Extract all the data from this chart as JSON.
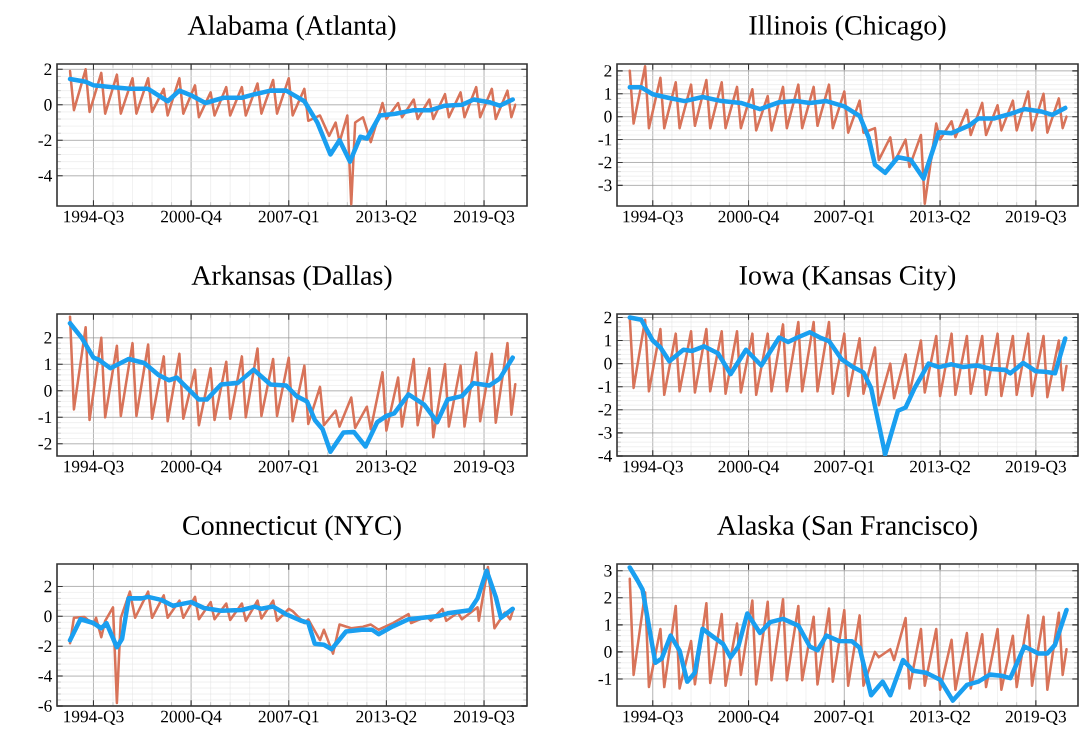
{
  "chart_data": [
    {
      "type": "line",
      "title": "Alabama (Atlanta)",
      "xlim": [
        "1992-03",
        "2022-04"
      ],
      "ylim": [
        -5.7,
        2.3
      ],
      "grid": true,
      "xticks": [
        {
          "value": "1994-07",
          "label": "1994-Q3"
        },
        {
          "value": "2000-10",
          "label": "2000-Q4"
        },
        {
          "value": "2007-01",
          "label": "2007-Q1"
        },
        {
          "value": "2013-04",
          "label": "2013-Q2"
        },
        {
          "value": "2019-07",
          "label": "2019-Q3"
        }
      ],
      "yticks": [
        -4,
        -2,
        0,
        2
      ],
      "x": [
        "1993-01",
        "1993-04",
        "1994-01",
        "1994-04",
        "1995-01",
        "1995-04",
        "1996-01",
        "1996-04",
        "1997-01",
        "1997-04",
        "1998-01",
        "1998-04",
        "1999-01",
        "1999-04",
        "2000-01",
        "2000-04",
        "2001-01",
        "2001-04",
        "2002-01",
        "2002-04",
        "2003-01",
        "2003-04",
        "2004-01",
        "2004-04",
        "2005-01",
        "2005-04",
        "2006-01",
        "2006-04",
        "2007-01",
        "2007-04",
        "2008-01",
        "2008-04",
        "2009-01",
        "2009-08",
        "2010-01",
        "2010-04",
        "2010-10",
        "2011-01",
        "2011-04",
        "2011-10",
        "2012-04",
        "2013-01",
        "2013-04",
        "2014-01",
        "2014-04",
        "2015-01",
        "2015-04",
        "2016-01",
        "2016-04",
        "2017-01",
        "2017-04",
        "2018-01",
        "2018-04",
        "2019-01",
        "2019-04",
        "2020-01",
        "2020-04",
        "2021-01",
        "2021-04",
        "2021-07"
      ],
      "series": [
        {
          "color": "#d87359",
          "values": [
            1.9,
            -0.3,
            2.0,
            -0.4,
            1.8,
            -0.5,
            1.7,
            -0.5,
            1.5,
            -0.5,
            1.5,
            -0.4,
            0.9,
            -0.6,
            1.5,
            -0.5,
            1.1,
            -0.7,
            0.7,
            -0.6,
            1.0,
            -0.6,
            1.0,
            -0.6,
            1.2,
            -0.5,
            1.4,
            -0.5,
            1.5,
            -0.6,
            0.9,
            -0.9,
            -0.6,
            -1.75,
            -1.0,
            -2.1,
            -0.6,
            -5.6,
            -1.0,
            -0.7,
            -2.1,
            0.1,
            -0.8,
            0.1,
            -0.7,
            0.3,
            -0.8,
            0.3,
            -0.8,
            0.6,
            -0.7,
            0.7,
            -0.7,
            1.0,
            -0.7,
            0.9,
            -0.8,
            0.8,
            -0.7,
            0.0
          ]
        },
        {
          "color": "#1a9ff0",
          "x": [
            "1993-01",
            "1994-01",
            "1994-07",
            "1995-08",
            "1996-11",
            "1998-01",
            "1999-04",
            "2000-01",
            "2000-11",
            "2001-09",
            "2002-11",
            "2004-01",
            "2004-11",
            "2005-11",
            "2006-11",
            "2008-01",
            "2008-11",
            "2009-09",
            "2010-04",
            "2010-12",
            "2011-08",
            "2012-01",
            "2012-11",
            "2013-11",
            "2015-01",
            "2016-02",
            "2017-01",
            "2018-02",
            "2018-11",
            "2019-11",
            "2020-07",
            "2021-05"
          ],
          "values": [
            1.45,
            1.3,
            1.1,
            1.0,
            0.9,
            0.9,
            0.2,
            0.8,
            0.5,
            0.1,
            0.4,
            0.4,
            0.6,
            0.8,
            0.8,
            0.2,
            -1.0,
            -2.8,
            -2.0,
            -3.2,
            -1.8,
            -1.9,
            -0.6,
            -0.5,
            -0.3,
            -0.3,
            -0.05,
            0.0,
            0.3,
            0.15,
            -0.05,
            0.3
          ]
        }
      ]
    },
    {
      "type": "line",
      "title": "Illinois (Chicago)",
      "xlim": [
        "1992-03",
        "2022-04"
      ],
      "ylim": [
        -3.9,
        2.3
      ],
      "grid": true,
      "xticks": [
        {
          "value": "1994-07",
          "label": "1994-Q3"
        },
        {
          "value": "2000-10",
          "label": "2000-Q4"
        },
        {
          "value": "2007-01",
          "label": "2007-Q1"
        },
        {
          "value": "2013-04",
          "label": "2013-Q2"
        },
        {
          "value": "2019-07",
          "label": "2019-Q3"
        }
      ],
      "yticks": [
        -3,
        -2,
        -1,
        0,
        1,
        2
      ],
      "x": [
        "1993-01",
        "1993-04",
        "1994-01",
        "1994-04",
        "1995-01",
        "1995-04",
        "1996-01",
        "1996-04",
        "1997-01",
        "1997-04",
        "1998-01",
        "1998-04",
        "1999-01",
        "1999-04",
        "2000-01",
        "2000-04",
        "2001-01",
        "2001-04",
        "2002-01",
        "2002-04",
        "2003-01",
        "2003-04",
        "2004-01",
        "2004-04",
        "2005-01",
        "2005-04",
        "2006-01",
        "2006-04",
        "2007-01",
        "2007-04",
        "2008-01",
        "2008-04",
        "2009-01",
        "2009-04",
        "2010-01",
        "2010-04",
        "2011-01",
        "2011-04",
        "2012-01",
        "2012-04",
        "2013-01",
        "2013-04",
        "2014-01",
        "2014-04",
        "2015-01",
        "2015-04",
        "2016-01",
        "2016-04",
        "2017-01",
        "2017-04",
        "2018-01",
        "2018-04",
        "2019-01",
        "2019-04",
        "2020-01",
        "2020-04",
        "2021-01",
        "2021-04",
        "2021-07"
      ],
      "series": [
        {
          "color": "#d87359",
          "values": [
            2.0,
            -0.3,
            2.2,
            -0.5,
            1.7,
            -0.5,
            1.5,
            -0.5,
            1.4,
            -0.4,
            1.6,
            -0.5,
            1.5,
            -0.5,
            1.3,
            -0.5,
            1.2,
            -0.6,
            0.9,
            -0.6,
            1.3,
            -0.5,
            1.4,
            -0.5,
            1.3,
            -0.4,
            1.4,
            -0.5,
            1.1,
            -0.7,
            0.7,
            -0.7,
            -0.5,
            -1.9,
            -0.9,
            -2.0,
            -1.0,
            -2.2,
            -0.8,
            -3.8,
            -0.3,
            -1.0,
            -0.2,
            -0.9,
            0.3,
            -0.8,
            0.6,
            -0.8,
            0.5,
            -0.6,
            0.7,
            -0.6,
            1.1,
            -0.6,
            1.0,
            -0.7,
            0.8,
            -0.5,
            0.0
          ]
        },
        {
          "color": "#1a9ff0",
          "x": [
            "1993-01",
            "1993-10",
            "1994-07",
            "1995-07",
            "1996-08",
            "1997-10",
            "1999-01",
            "2000-04",
            "2001-07",
            "2002-10",
            "2003-11",
            "2004-10",
            "2005-11",
            "2007-01",
            "2008-01",
            "2008-08",
            "2009-01",
            "2009-09",
            "2010-07",
            "2011-05",
            "2012-03",
            "2013-03",
            "2014-01",
            "2015-03",
            "2015-10",
            "2016-10",
            "2017-11",
            "2018-10",
            "2019-11",
            "2020-08",
            "2021-06"
          ],
          "values": [
            1.28,
            1.28,
            0.98,
            0.83,
            0.68,
            0.86,
            0.68,
            0.6,
            0.33,
            0.63,
            0.68,
            0.6,
            0.68,
            0.45,
            0.03,
            -0.9,
            -2.1,
            -2.45,
            -1.77,
            -1.88,
            -2.7,
            -0.68,
            -0.72,
            -0.38,
            -0.08,
            -0.08,
            0.12,
            0.33,
            0.23,
            0.08,
            0.38
          ]
        }
      ]
    },
    {
      "type": "line",
      "title": "Arkansas (Dallas)",
      "xlim": [
        "1992-03",
        "2022-04"
      ],
      "ylim": [
        -2.46,
        2.9
      ],
      "grid": true,
      "xticks": [
        {
          "value": "1994-07",
          "label": "1994-Q3"
        },
        {
          "value": "2000-10",
          "label": "2000-Q4"
        },
        {
          "value": "2007-01",
          "label": "2007-Q1"
        },
        {
          "value": "2013-04",
          "label": "2013-Q2"
        },
        {
          "value": "2019-07",
          "label": "2019-Q3"
        }
      ],
      "yticks": [
        -2,
        -1,
        0,
        1,
        2
      ],
      "x": [
        "1993-01",
        "1993-04",
        "1994-01",
        "1994-04",
        "1995-01",
        "1995-04",
        "1996-01",
        "1996-04",
        "1997-01",
        "1997-04",
        "1998-01",
        "1998-04",
        "1999-01",
        "1999-04",
        "2000-01",
        "2000-04",
        "2001-01",
        "2001-04",
        "2002-01",
        "2002-04",
        "2003-01",
        "2003-04",
        "2004-01",
        "2004-04",
        "2005-01",
        "2005-04",
        "2006-01",
        "2006-04",
        "2007-01",
        "2007-04",
        "2008-01",
        "2008-04",
        "2009-01",
        "2009-04",
        "2010-01",
        "2010-04",
        "2011-01",
        "2011-04",
        "2012-01",
        "2012-04",
        "2013-01",
        "2013-04",
        "2014-01",
        "2014-04",
        "2015-01",
        "2015-04",
        "2016-01",
        "2016-04",
        "2017-01",
        "2017-04",
        "2018-01",
        "2018-04",
        "2019-01",
        "2019-04",
        "2020-01",
        "2020-04",
        "2021-01",
        "2021-04",
        "2021-07"
      ],
      "series": [
        {
          "color": "#d87359",
          "values": [
            2.8,
            -0.7,
            2.4,
            -1.1,
            2.0,
            -1.0,
            1.7,
            -0.95,
            1.8,
            -0.95,
            1.75,
            -1.05,
            1.3,
            -1.15,
            1.4,
            -1.05,
            0.8,
            -1.3,
            0.85,
            -1.1,
            1.1,
            -1.05,
            1.3,
            -1.0,
            1.6,
            -0.95,
            1.2,
            -0.95,
            1.25,
            -1.15,
            0.95,
            -1.25,
            0.15,
            -1.3,
            -0.75,
            -1.35,
            -0.25,
            -1.4,
            -0.6,
            -1.45,
            0.7,
            -1.5,
            0.5,
            -1.35,
            1.2,
            -1.3,
            0.85,
            -1.75,
            1.0,
            -1.35,
            0.95,
            -1.35,
            1.45,
            -1.15,
            1.4,
            -1.2,
            1.8,
            -0.9,
            0.25
          ]
        },
        {
          "color": "#1a9ff0",
          "x": [
            "1993-01",
            "1993-10",
            "1994-07",
            "1994-11",
            "1995-08",
            "1996-10",
            "1997-10",
            "1998-09",
            "1999-05",
            "1999-11",
            "2001-04",
            "2001-10",
            "2002-09",
            "2003-10",
            "2004-10",
            "2005-11",
            "2006-11",
            "2007-07",
            "2008-03",
            "2008-09",
            "2009-03",
            "2009-09",
            "2010-07",
            "2011-03",
            "2011-12",
            "2012-09",
            "2013-04",
            "2013-10",
            "2014-09",
            "2015-09",
            "2016-07",
            "2017-03",
            "2018-02",
            "2018-11",
            "2019-11",
            "2020-07",
            "2021-05"
          ],
          "values": [
            2.55,
            2.0,
            1.25,
            1.18,
            0.85,
            1.2,
            1.05,
            0.6,
            0.4,
            0.5,
            -0.33,
            -0.33,
            0.24,
            0.3,
            0.8,
            0.24,
            0.2,
            -0.2,
            -0.4,
            -1.1,
            -1.45,
            -2.3,
            -1.57,
            -1.55,
            -2.1,
            -1.18,
            -0.95,
            -0.85,
            -0.13,
            -0.52,
            -1.18,
            -0.33,
            -0.2,
            0.29,
            0.2,
            0.46,
            1.25
          ]
        }
      ]
    },
    {
      "type": "line",
      "title": "Iowa (Kansas City)",
      "xlim": [
        "1992-03",
        "2022-04"
      ],
      "ylim": [
        -4,
        2.15
      ],
      "grid": true,
      "xticks": [
        {
          "value": "1994-07",
          "label": "1994-Q3"
        },
        {
          "value": "2000-10",
          "label": "2000-Q4"
        },
        {
          "value": "2007-01",
          "label": "2007-Q1"
        },
        {
          "value": "2013-04",
          "label": "2013-Q2"
        },
        {
          "value": "2019-07",
          "label": "2019-Q3"
        }
      ],
      "yticks": [
        -4,
        -3,
        -2,
        -1,
        0,
        1,
        2
      ],
      "x": [
        "1993-01",
        "1993-04",
        "1994-01",
        "1994-04",
        "1995-01",
        "1995-04",
        "1996-01",
        "1996-04",
        "1997-01",
        "1997-04",
        "1998-01",
        "1998-04",
        "1999-01",
        "1999-04",
        "2000-01",
        "2000-04",
        "2001-01",
        "2001-04",
        "2002-01",
        "2002-04",
        "2003-01",
        "2003-04",
        "2004-01",
        "2004-04",
        "2005-01",
        "2005-04",
        "2006-01",
        "2006-04",
        "2007-01",
        "2007-04",
        "2008-01",
        "2008-04",
        "2009-01",
        "2009-04",
        "2010-01",
        "2010-04",
        "2011-01",
        "2011-04",
        "2012-01",
        "2012-04",
        "2013-01",
        "2013-04",
        "2014-01",
        "2014-04",
        "2015-01",
        "2015-04",
        "2016-01",
        "2016-04",
        "2017-01",
        "2017-04",
        "2018-01",
        "2018-04",
        "2019-01",
        "2019-04",
        "2020-01",
        "2020-04",
        "2021-01",
        "2021-04",
        "2021-07"
      ],
      "series": [
        {
          "color": "#d87359",
          "values": [
            2.0,
            -1.05,
            1.9,
            -1.2,
            1.5,
            -1.35,
            1.3,
            -1.2,
            1.4,
            -1.25,
            1.5,
            -1.2,
            1.4,
            -1.3,
            1.4,
            -1.25,
            1.3,
            -1.35,
            1.3,
            -1.2,
            1.7,
            -1.2,
            1.8,
            -1.2,
            1.8,
            -1.2,
            1.8,
            -1.3,
            1.3,
            -1.4,
            1.1,
            -1.3,
            0.7,
            -1.8,
            0.0,
            -1.5,
            0.4,
            -1.3,
            1.0,
            -1.25,
            1.2,
            -1.4,
            1.3,
            -1.35,
            1.2,
            -1.3,
            1.2,
            -1.35,
            1.3,
            -1.4,
            1.2,
            -1.35,
            1.3,
            -1.4,
            1.2,
            -1.45,
            1.0,
            -1.15,
            -0.1
          ]
        },
        {
          "color": "#1a9ff0",
          "x": [
            "1993-01",
            "1993-10",
            "1994-07",
            "1995-01",
            "1995-08",
            "1996-07",
            "1997-02",
            "1997-11",
            "1998-10",
            "1999-08",
            "2000-08",
            "2001-08",
            "2002-10",
            "2003-05",
            "2003-11",
            "2004-10",
            "2005-07",
            "2006-01",
            "2006-11",
            "2007-07",
            "2008-04",
            "2008-10",
            "2009-09",
            "2010-07",
            "2011-01",
            "2011-08",
            "2012-07",
            "2013-03",
            "2014-01",
            "2014-10",
            "2015-09",
            "2016-08",
            "2017-07",
            "2017-11",
            "2018-09",
            "2019-07",
            "2020-02",
            "2020-10",
            "2021-06"
          ],
          "values": [
            2.0,
            1.9,
            1.0,
            0.7,
            0.1,
            0.6,
            0.55,
            0.75,
            0.45,
            -0.45,
            0.6,
            -0.08,
            1.13,
            0.94,
            1.1,
            1.36,
            1.1,
            0.98,
            0.18,
            -0.12,
            -0.38,
            -1.06,
            -3.93,
            -2.04,
            -1.9,
            -1.06,
            0.0,
            -0.15,
            -0.03,
            -0.15,
            -0.08,
            -0.23,
            -0.27,
            -0.42,
            0.03,
            -0.33,
            -0.35,
            -0.42,
            1.09
          ]
        }
      ]
    },
    {
      "type": "line",
      "title": "Connecticut (NYC)",
      "xlim": [
        "1992-03",
        "2022-04"
      ],
      "ylim": [
        -6,
        3.5
      ],
      "grid": true,
      "xticks": [
        {
          "value": "1994-07",
          "label": "1994-Q3"
        },
        {
          "value": "2000-10",
          "label": "2000-Q4"
        },
        {
          "value": "2007-01",
          "label": "2007-Q1"
        },
        {
          "value": "2013-04",
          "label": "2013-Q2"
        },
        {
          "value": "2019-07",
          "label": "2019-Q3"
        }
      ],
      "yticks": [
        -6,
        -4,
        -2,
        0,
        2
      ],
      "x": [
        "1993-01",
        "1993-04",
        "1993-12",
        "1994-07",
        "1994-09",
        "1995-01",
        "1995-04",
        "1995-10",
        "1996-01",
        "1996-04",
        "1996-11",
        "1997-03",
        "1998-01",
        "1998-04",
        "1999-01",
        "1999-04",
        "2000-01",
        "2000-04",
        "2001-01",
        "2001-04",
        "2002-01",
        "2002-04",
        "2003-01",
        "2003-04",
        "2004-01",
        "2004-04",
        "2005-01",
        "2005-04",
        "2006-01",
        "2006-04",
        "2007-01",
        "2007-04",
        "2008-01",
        "2008-04",
        "2009-01",
        "2009-04",
        "2009-11",
        "2010-04",
        "2011-01",
        "2011-10",
        "2012-04",
        "2012-10",
        "2013-09",
        "2014-09",
        "2014-11",
        "2015-11",
        "2016-02",
        "2016-11",
        "2017-02",
        "2017-11",
        "2018-02",
        "2019-02",
        "2019-03",
        "2019-10",
        "2020-03",
        "2020-11",
        "2021-03",
        "2021-05"
      ],
      "series": [
        {
          "color": "#d87359",
          "values": [
            -1.8,
            -0.1,
            -0.05,
            -0.55,
            -0.1,
            -1.4,
            -0.3,
            0.6,
            -5.8,
            -0.1,
            1.65,
            -0.1,
            1.65,
            -0.1,
            1.4,
            -0.1,
            1.05,
            -0.1,
            1.3,
            -0.2,
            0.95,
            -0.2,
            0.85,
            -0.25,
            0.85,
            -0.3,
            1.05,
            -0.15,
            1.05,
            -0.3,
            0.5,
            0.35,
            -0.45,
            -0.2,
            -1.6,
            -0.9,
            -2.5,
            -0.55,
            -0.8,
            -0.7,
            -0.55,
            -0.9,
            -0.45,
            0.15,
            -0.45,
            0.0,
            -0.3,
            0.5,
            -0.3,
            0.25,
            -0.2,
            0.6,
            -0.3,
            3.3,
            -0.8,
            0.25,
            -0.2,
            0.35
          ]
        },
        {
          "color": "#1a9ff0",
          "x": [
            "1993-01",
            "1993-09",
            "1994-07",
            "1995-01",
            "1995-05",
            "1996-01",
            "1996-05",
            "1996-10",
            "1997-08",
            "1998-01",
            "1998-11",
            "1999-08",
            "2000-10",
            "2001-08",
            "2002-09",
            "2004-01",
            "2004-11",
            "2005-04",
            "2006-01",
            "2006-11",
            "2007-10",
            "2008-04",
            "2008-09",
            "2009-04",
            "2009-10",
            "2010-09",
            "2011-09",
            "2012-05",
            "2012-10",
            "2013-09",
            "2014-09",
            "2015-08",
            "2016-08",
            "2017-03",
            "2018-08",
            "2019-02",
            "2019-09",
            "2020-04",
            "2020-08",
            "2021-05"
          ],
          "values": [
            -1.6,
            -0.2,
            -0.45,
            -0.8,
            -0.45,
            -2.07,
            -1.5,
            1.2,
            1.2,
            1.3,
            1.1,
            0.7,
            0.95,
            0.55,
            0.37,
            0.42,
            0.65,
            0.5,
            0.65,
            0.14,
            -0.28,
            -0.44,
            -1.84,
            -1.9,
            -2.2,
            -1.02,
            -0.9,
            -0.9,
            -1.2,
            -0.67,
            -0.2,
            -0.09,
            0.02,
            0.2,
            0.4,
            1.2,
            3.05,
            1.3,
            -0.1,
            0.5
          ]
        }
      ]
    },
    {
      "type": "line",
      "title": "Alaska (San Francisco)",
      "xlim": [
        "1992-03",
        "2022-04"
      ],
      "ylim": [
        -2,
        3.25
      ],
      "grid": true,
      "xticks": [
        {
          "value": "1994-07",
          "label": "1994-Q3"
        },
        {
          "value": "2000-10",
          "label": "2000-Q4"
        },
        {
          "value": "2007-01",
          "label": "2007-Q1"
        },
        {
          "value": "2013-04",
          "label": "2013-Q2"
        },
        {
          "value": "2019-07",
          "label": "2019-Q3"
        }
      ],
      "yticks": [
        -1,
        0,
        1,
        2,
        3
      ],
      "x": [
        "1993-01",
        "1993-04",
        "1994-01",
        "1994-04",
        "1995-01",
        "1995-04",
        "1996-01",
        "1996-04",
        "1997-01",
        "1997-04",
        "1998-01",
        "1998-04",
        "1999-01",
        "1999-04",
        "2000-01",
        "2000-04",
        "2001-01",
        "2001-04",
        "2002-01",
        "2002-04",
        "2003-01",
        "2003-04",
        "2004-01",
        "2004-04",
        "2005-01",
        "2005-04",
        "2006-01",
        "2006-04",
        "2007-01",
        "2007-04",
        "2008-01",
        "2008-04",
        "2009-01",
        "2009-04",
        "2010-01",
        "2010-04",
        "2011-01",
        "2011-04",
        "2012-01",
        "2012-04",
        "2013-01",
        "2013-04",
        "2014-01",
        "2014-04",
        "2015-01",
        "2015-04",
        "2016-01",
        "2016-04",
        "2017-01",
        "2017-04",
        "2018-01",
        "2018-04",
        "2019-01",
        "2019-04",
        "2020-01",
        "2020-04",
        "2021-01",
        "2021-04",
        "2021-07"
      ],
      "series": [
        {
          "color": "#d87359",
          "values": [
            2.7,
            -0.85,
            2.2,
            -1.3,
            0.85,
            -1.3,
            1.7,
            -1.35,
            0.4,
            -1.2,
            1.8,
            -1.15,
            1.4,
            -1.25,
            1.05,
            -0.85,
            1.9,
            -1.2,
            1.85,
            -1.05,
            1.95,
            -1.05,
            1.7,
            -1.05,
            1.3,
            -1.2,
            1.6,
            -1.1,
            1.55,
            -1.25,
            1.35,
            -1.25,
            0.0,
            -0.2,
            0.1,
            -0.3,
            1.25,
            -1.35,
            0.85,
            -1.25,
            0.85,
            -1.4,
            0.45,
            -1.4,
            0.7,
            -1.35,
            0.65,
            -1.3,
            0.85,
            -1.4,
            0.6,
            -1.3,
            1.35,
            -1.25,
            1.3,
            -1.4,
            1.45,
            -0.85,
            0.1
          ]
        },
        {
          "color": "#1a9ff0",
          "x": [
            "1993-01",
            "1993-07",
            "1993-11",
            "1994-09",
            "1995-02",
            "1995-09",
            "1996-04",
            "1996-10",
            "1997-04",
            "1997-10",
            "1998-08",
            "1999-02",
            "1999-08",
            "2000-02",
            "2000-09",
            "2001-07",
            "2002-03",
            "2003-01",
            "2004-01",
            "2004-10",
            "2005-04",
            "2005-11",
            "2006-09",
            "2007-07",
            "2008-01",
            "2008-10",
            "2009-07",
            "2010-01",
            "2010-11",
            "2011-07",
            "2012-05",
            "2013-04",
            "2014-02",
            "2015-01",
            "2015-10",
            "2016-07",
            "2017-04",
            "2017-11",
            "2018-10",
            "2019-09",
            "2020-04",
            "2020-10",
            "2021-07"
          ],
          "values": [
            3.12,
            2.65,
            2.3,
            -0.4,
            -0.25,
            0.6,
            0.05,
            -1.1,
            -0.77,
            0.85,
            0.5,
            0.3,
            -0.2,
            0.2,
            1.42,
            0.7,
            1.1,
            1.22,
            0.97,
            0.2,
            0.06,
            0.6,
            0.4,
            0.39,
            0.15,
            -1.6,
            -1.1,
            -1.6,
            -0.3,
            -0.7,
            -0.77,
            -1.03,
            -1.8,
            -1.22,
            -1.1,
            -0.84,
            -0.88,
            -0.97,
            0.2,
            -0.06,
            -0.06,
            0.26,
            1.55
          ]
        }
      ]
    }
  ]
}
